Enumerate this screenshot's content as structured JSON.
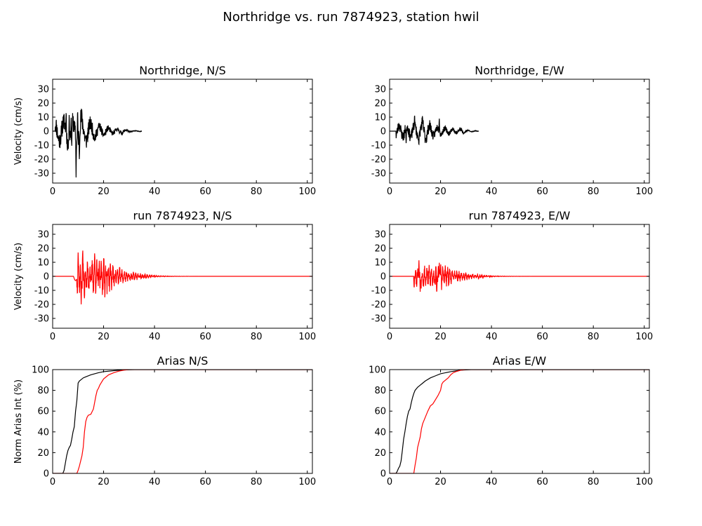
{
  "suptitle": "Northridge vs. run 7874923, station hwil",
  "colors": {
    "recorded": "#000000",
    "simulated": "#ff0000"
  },
  "chart_data": [
    {
      "id": "ns-rec",
      "type": "line",
      "title": "Northridge, N/S",
      "ylabel": "Velocity (cm/s)",
      "xlim": [
        0,
        102
      ],
      "ylim": [
        -37,
        37
      ],
      "xticks": [
        0,
        20,
        40,
        60,
        80,
        100
      ],
      "yticks": [
        30,
        20,
        10,
        0,
        -10,
        -20,
        -30
      ],
      "series": [
        {
          "color": "#000000",
          "kind": "velocity",
          "t_start": 0,
          "t_end": 35,
          "t_onset": 1.0,
          "peaks": [
            [
              9.2,
              -33
            ],
            [
              9.8,
              17
            ],
            [
              10.5,
              -22
            ],
            [
              5.3,
              15
            ],
            [
              5.8,
              -15
            ],
            [
              6.5,
              13
            ],
            [
              7.5,
              -12
            ]
          ],
          "amp_early": 12,
          "amp_late": 4.5,
          "period": 3.5,
          "seed": 11
        }
      ]
    },
    {
      "id": "ew-rec",
      "type": "line",
      "title": "Northridge, E/W",
      "ylabel": "",
      "xlim": [
        0,
        102
      ],
      "ylim": [
        -37,
        37
      ],
      "xticks": [
        0,
        20,
        40,
        60,
        80,
        100
      ],
      "yticks": [
        30,
        20,
        10,
        0,
        -10,
        -20,
        -30
      ],
      "series": [
        {
          "color": "#000000",
          "kind": "velocity",
          "t_start": 0,
          "t_end": 35,
          "t_onset": 2.5,
          "peaks": [
            [
              9.8,
              12
            ],
            [
              11.5,
              -10
            ],
            [
              19.5,
              10
            ],
            [
              6.5,
              -10
            ]
          ],
          "amp_early": 7,
          "amp_late": 4,
          "period": 3,
          "seed": 23
        }
      ]
    },
    {
      "id": "ns-sim",
      "type": "line",
      "title": "run 7874923, N/S",
      "ylabel": "Velocity (cm/s)",
      "xlim": [
        0,
        102
      ],
      "ylim": [
        -37,
        37
      ],
      "xticks": [
        0,
        20,
        40,
        60,
        80,
        100
      ],
      "yticks": [
        30,
        20,
        10,
        0,
        -10,
        -20,
        -30
      ],
      "series": [
        {
          "color": "#ff0000",
          "kind": "velocity",
          "t_start": 0,
          "t_end": 102,
          "t_onset": 9.5,
          "peaks": [
            [
              11.2,
              -20
            ],
            [
              11.8,
              20
            ],
            [
              12.5,
              -17
            ],
            [
              16.5,
              17
            ],
            [
              10,
              17
            ]
          ],
          "amp_early": 12,
          "amp_late": 4,
          "period": 0.9,
          "seed": 37,
          "pre_bump": [
            9,
            -3
          ]
        }
      ]
    },
    {
      "id": "ew-sim",
      "type": "line",
      "title": "run 7874923, E/W",
      "ylabel": "",
      "xlim": [
        0,
        102
      ],
      "ylim": [
        -37,
        37
      ],
      "xticks": [
        0,
        20,
        40,
        60,
        80,
        100
      ],
      "yticks": [
        30,
        20,
        10,
        0,
        -10,
        -20,
        -30
      ],
      "series": [
        {
          "color": "#ff0000",
          "kind": "velocity",
          "t_start": 0,
          "t_end": 102,
          "t_onset": 9.5,
          "peaks": [
            [
              11.5,
              13
            ],
            [
              12,
              -11
            ],
            [
              18.5,
              -12
            ],
            [
              19.5,
              11
            ]
          ],
          "amp_early": 8,
          "amp_late": 3,
          "period": 0.9,
          "seed": 53
        }
      ]
    },
    {
      "id": "ns-arias",
      "type": "line",
      "title": "Arias N/S",
      "ylabel": "Norm Arias Int (%)",
      "xlim": [
        0,
        102
      ],
      "ylim": [
        0,
        100
      ],
      "xticks": [
        0,
        20,
        40,
        60,
        80,
        100
      ],
      "yticks": [
        100,
        80,
        60,
        40,
        20,
        0
      ],
      "series": [
        {
          "color": "#000000",
          "kind": "arias",
          "x": [
            0,
            4,
            4.5,
            5,
            5.5,
            6,
            6.5,
            7,
            7.5,
            8,
            8.5,
            9,
            9.5,
            10,
            10.5,
            11,
            12,
            13,
            15,
            18,
            20,
            24,
            28,
            32,
            102
          ],
          "y": [
            0,
            0,
            3,
            10,
            17,
            22,
            25,
            27,
            33,
            40,
            45,
            60,
            70,
            87,
            89,
            90,
            92,
            93,
            95,
            97,
            98,
            99,
            99.7,
            100,
            100
          ]
        },
        {
          "color": "#ff0000",
          "kind": "arias",
          "x": [
            0,
            9.5,
            10,
            10.5,
            11,
            11.5,
            12,
            12.5,
            13,
            13.5,
            14,
            15,
            16,
            17,
            17.5,
            18,
            18.5,
            19,
            20,
            21,
            22,
            24,
            26,
            28,
            30,
            102
          ],
          "y": [
            0,
            0,
            3,
            7,
            12,
            17,
            25,
            40,
            50,
            54,
            56,
            57,
            62,
            75,
            80,
            82,
            85,
            87,
            91,
            93,
            95,
            97,
            98.5,
            99.5,
            100,
            100
          ]
        }
      ]
    },
    {
      "id": "ew-arias",
      "type": "line",
      "title": "Arias E/W",
      "ylabel": "",
      "xlim": [
        0,
        102
      ],
      "ylim": [
        0,
        100
      ],
      "xticks": [
        0,
        20,
        40,
        60,
        80,
        100
      ],
      "yticks": [
        100,
        80,
        60,
        40,
        20,
        0
      ],
      "series": [
        {
          "color": "#000000",
          "kind": "arias",
          "x": [
            0,
            2.5,
            3,
            3.5,
            4,
            4.5,
            5,
            5.5,
            6,
            6.5,
            7,
            7.5,
            8,
            8.5,
            9,
            9.5,
            10,
            11,
            12,
            13,
            14,
            16,
            18,
            20,
            24,
            28,
            32,
            102
          ],
          "y": [
            0,
            0,
            2,
            5,
            7,
            12,
            22,
            33,
            40,
            48,
            55,
            60,
            62,
            68,
            73,
            77,
            80,
            83,
            85,
            87,
            89,
            92,
            94,
            96,
            98,
            99.5,
            100,
            100
          ]
        },
        {
          "color": "#ff0000",
          "kind": "arias",
          "x": [
            0,
            9.5,
            10,
            10.5,
            11,
            11.5,
            12,
            12.5,
            13,
            14,
            15,
            16,
            17,
            18,
            19,
            20,
            20.5,
            21,
            22,
            23,
            24,
            25,
            26,
            28,
            30,
            102
          ],
          "y": [
            0,
            0,
            8,
            15,
            25,
            30,
            35,
            43,
            48,
            54,
            60,
            65,
            67,
            71,
            75,
            80,
            86,
            88,
            90,
            92,
            95,
            97,
            98,
            99.5,
            100,
            100
          ]
        }
      ]
    }
  ]
}
